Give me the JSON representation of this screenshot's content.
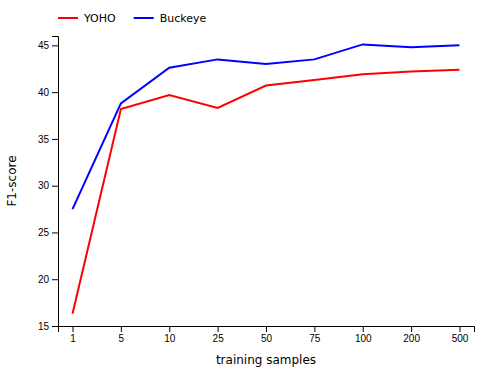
{
  "chart_data": {
    "type": "line",
    "xlabel": "training samples",
    "ylabel": "F1-score",
    "categories": [
      "1",
      "5",
      "10",
      "25",
      "50",
      "75",
      "100",
      "200",
      "500"
    ],
    "series": [
      {
        "name": "YOHO",
        "color": "#ff0000",
        "values": [
          16.3,
          38.2,
          39.7,
          38.3,
          40.7,
          41.3,
          41.9,
          42.2,
          42.4
        ]
      },
      {
        "name": "Buckeye",
        "color": "#0000ff",
        "values": [
          27.5,
          38.8,
          42.6,
          43.5,
          43.0,
          43.5,
          45.1,
          44.8,
          45.0
        ]
      }
    ],
    "ylim": [
      15,
      46
    ],
    "yticks": [
      15,
      20,
      25,
      30,
      35,
      40,
      45
    ],
    "legend": "top-left"
  }
}
